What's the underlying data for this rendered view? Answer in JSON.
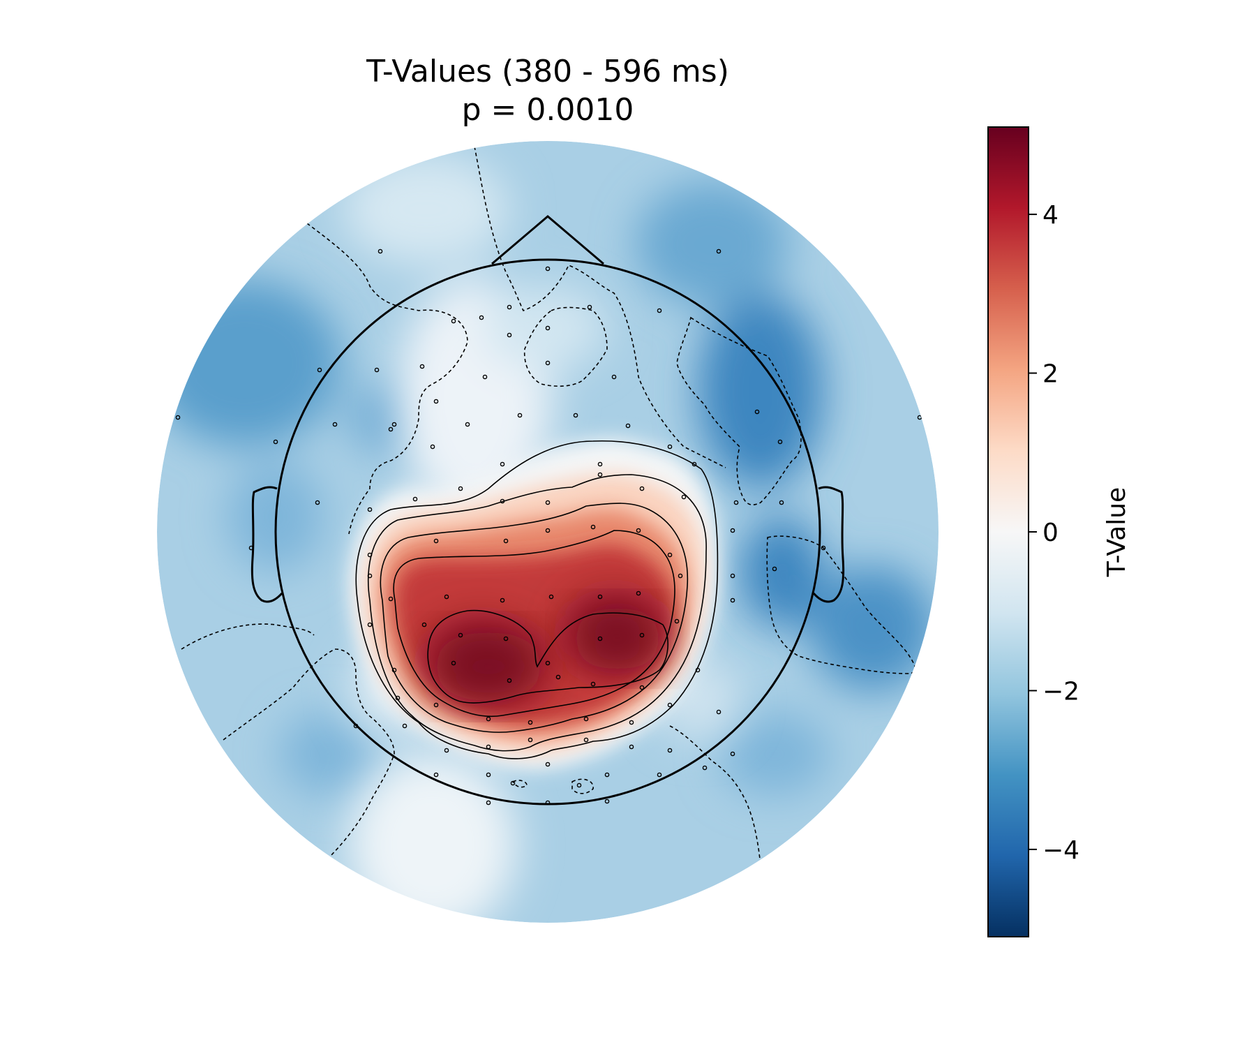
{
  "chart_data": {
    "type": "heatmap",
    "title": "T-Values (380 - 596 ms)",
    "subtitle": "p = 0.0010",
    "colorbar": {
      "label": "T-Value",
      "vmin": -5.1,
      "vmax": 5.1,
      "ticks": [
        4,
        2,
        0,
        -2,
        -4
      ],
      "tick_labels": [
        "4",
        "2",
        "0",
        "−2",
        "−4"
      ],
      "colormap": "RdBu_r",
      "stops": [
        "#053061",
        "#2166ac",
        "#4393c3",
        "#92c5de",
        "#d1e5f0",
        "#f7f7f7",
        "#fddbc7",
        "#f4a582",
        "#d6604d",
        "#b2182b",
        "#67001f"
      ]
    },
    "contour_levels": [
      -2,
      -1,
      1,
      2,
      3,
      4
    ],
    "peak_values": {
      "max_t": 5.0,
      "min_t": -3.5
    }
  }
}
